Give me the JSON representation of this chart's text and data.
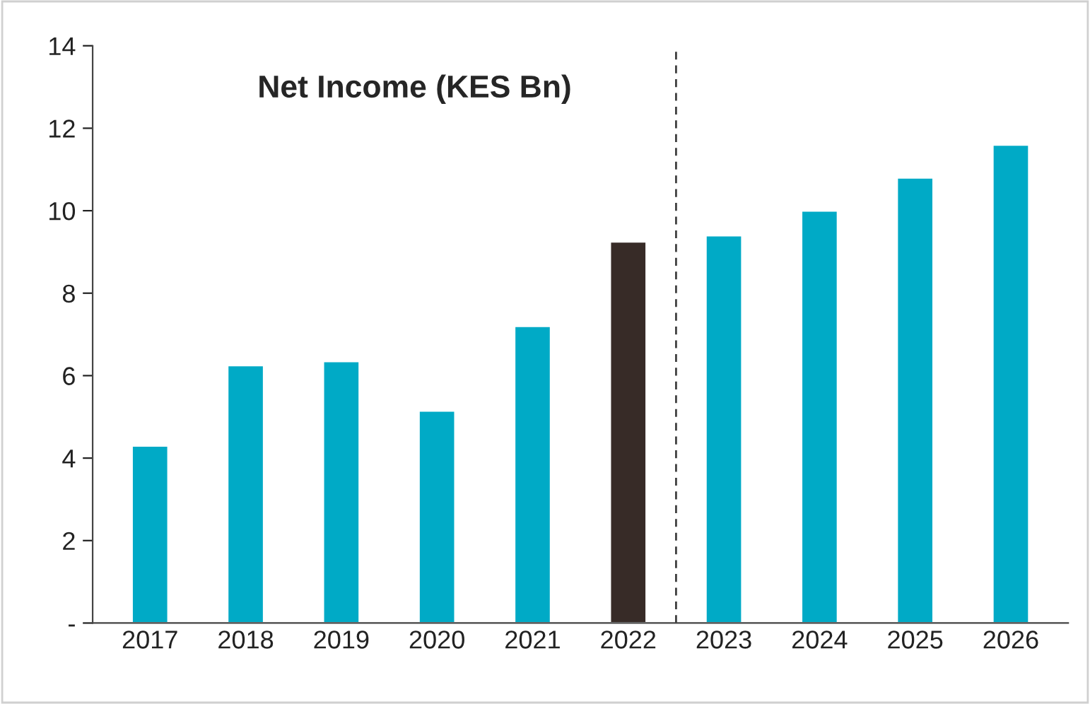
{
  "chart_data": {
    "type": "bar",
    "title": "Net Income (KES Bn)",
    "categories": [
      "2017",
      "2018",
      "2019",
      "2020",
      "2021",
      "2022",
      "2023",
      "2024",
      "2025",
      "2026"
    ],
    "values": [
      4.3,
      6.25,
      6.35,
      5.15,
      7.2,
      9.25,
      9.4,
      10.0,
      10.8,
      11.6
    ],
    "colors": [
      "#00aac6",
      "#00aac6",
      "#00aac6",
      "#00aac6",
      "#00aac6",
      "#372b27",
      "#00aac6",
      "#00aac6",
      "#00aac6",
      "#00aac6"
    ],
    "ylim": [
      0,
      14
    ],
    "yticks": [
      {
        "value": 0,
        "label": "-"
      },
      2,
      4,
      6,
      8,
      10,
      12,
      14
    ],
    "grid": false,
    "legend": false
  }
}
